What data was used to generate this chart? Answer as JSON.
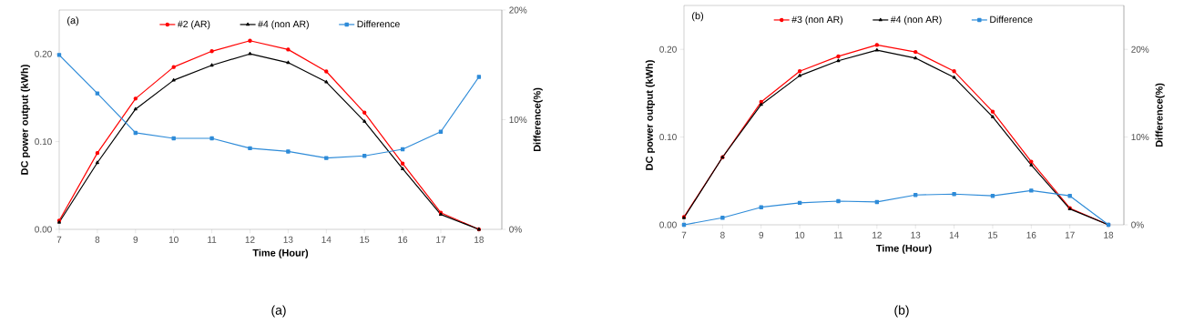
{
  "chart_data": [
    {
      "type": "line",
      "x": [
        7,
        8,
        9,
        10,
        11,
        12,
        13,
        14,
        15,
        16,
        17,
        18
      ],
      "xlabel": "Time (Hour)",
      "ylabel": "DC power output (kWh)",
      "y2label": "Difference(%)",
      "xlim": [
        7,
        18.6
      ],
      "xticks": [
        7,
        8,
        9,
        10,
        11,
        12,
        13,
        14,
        15,
        16,
        17,
        18
      ],
      "ylim": [
        0,
        0.25
      ],
      "yticks": [
        {
          "value": 0,
          "label": "0.00"
        },
        {
          "value": 0.1,
          "label": "0.10"
        },
        {
          "value": 0.2,
          "label": "0.20"
        }
      ],
      "y2lim": [
        0,
        20
      ],
      "y2ticks": [
        {
          "value": 0,
          "label": "0%"
        },
        {
          "value": 10,
          "label": "10%"
        },
        {
          "value": 20,
          "label": "20%"
        }
      ],
      "legend": "top",
      "grid": false,
      "line_style": "solid",
      "annotations": [
        "(a)",
        "(a)"
      ],
      "series": [
        {
          "name": "#2 (AR)",
          "color": "#ff0000",
          "marker": "circle",
          "values": [
            0.01,
            0.087,
            0.149,
            0.185,
            0.203,
            0.215,
            0.205,
            0.18,
            0.133,
            0.075,
            0.019,
            0
          ]
        },
        {
          "name": "#4 (non AR)",
          "color": "#000000",
          "marker": "triangle",
          "values": [
            0.008,
            0.076,
            0.137,
            0.17,
            0.187,
            0.2,
            0.19,
            0.168,
            0.123,
            0.069,
            0.017,
            0
          ]
        },
        {
          "name": "Difference",
          "color": "#2e8bd8",
          "marker": "square",
          "axis": "y2",
          "values": [
            15.9,
            12.4,
            8.8,
            8.3,
            8.3,
            7.4,
            7.1,
            6.5,
            6.7,
            7.3,
            8.9,
            13.9
          ]
        }
      ]
    },
    {
      "type": "line",
      "x": [
        7,
        8,
        9,
        10,
        11,
        12,
        13,
        14,
        15,
        16,
        17,
        18
      ],
      "xlabel": "Time (Hour)",
      "ylabel": "DC power output (kWh)",
      "y2label": "Difference(%)",
      "xlim": [
        7,
        18.4
      ],
      "xticks": [
        7,
        8,
        9,
        10,
        11,
        12,
        13,
        14,
        15,
        16,
        17,
        18
      ],
      "ylim": [
        0,
        0.25
      ],
      "yticks": [
        {
          "value": 0,
          "label": "0.00"
        },
        {
          "value": 0.1,
          "label": "0.10"
        },
        {
          "value": 0.2,
          "label": "0.20"
        }
      ],
      "y2lim": [
        0,
        25
      ],
      "y2ticks": [
        {
          "value": 0,
          "label": "0%"
        },
        {
          "value": 10,
          "label": "10%"
        },
        {
          "value": 20,
          "label": "20%"
        }
      ],
      "legend": "top",
      "grid": false,
      "line_style": "solid",
      "annotations": [
        "(b)",
        "(b)"
      ],
      "series": [
        {
          "name": "#3 (non AR)",
          "color": "#ff0000",
          "marker": "circle",
          "values": [
            0.009,
            0.077,
            0.14,
            0.175,
            0.192,
            0.205,
            0.197,
            0.175,
            0.129,
            0.072,
            0.019,
            0
          ]
        },
        {
          "name": "#4 (non AR)",
          "color": "#000000",
          "marker": "triangle",
          "values": [
            0.008,
            0.077,
            0.137,
            0.17,
            0.187,
            0.199,
            0.19,
            0.168,
            0.123,
            0.068,
            0.018,
            0
          ]
        },
        {
          "name": "Difference",
          "color": "#2e8bd8",
          "marker": "square",
          "axis": "y2",
          "values": [
            0,
            0.8,
            2.0,
            2.5,
            2.7,
            2.6,
            3.4,
            3.5,
            3.3,
            3.9,
            3.3,
            0
          ]
        }
      ]
    }
  ]
}
